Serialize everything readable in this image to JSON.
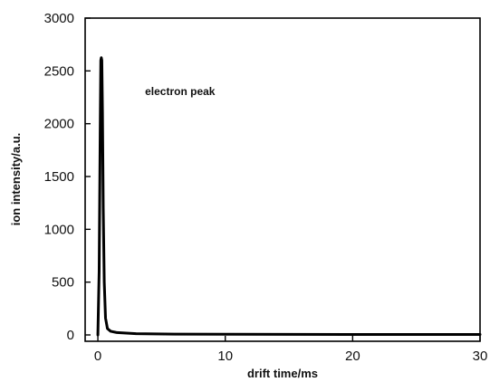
{
  "chart_data": {
    "type": "line",
    "title": "",
    "xlabel": "drift time/ms",
    "ylabel": "ion intensity/a.u.",
    "xlim": [
      -1,
      30
    ],
    "ylim": [
      -60,
      3000
    ],
    "xticks": [
      0,
      10,
      20,
      30
    ],
    "yticks": [
      0,
      500,
      1000,
      1500,
      2000,
      2500,
      3000
    ],
    "grid": false,
    "legend": "none",
    "annotations": [
      {
        "text": "electron peak",
        "x": 3.7,
        "y": 2270
      }
    ],
    "series": [
      {
        "color": "#000000",
        "x": [
          0,
          0.1,
          0.18,
          0.23,
          0.27,
          0.31,
          0.36,
          0.42,
          0.5,
          0.6,
          0.75,
          1.0,
          1.5,
          3,
          6,
          10,
          15,
          20,
          25,
          30
        ],
        "y": [
          0,
          600,
          1900,
          2600,
          2625,
          2600,
          2100,
          1200,
          500,
          160,
          60,
          35,
          22,
          12,
          8,
          6,
          5,
          4,
          4,
          4
        ]
      }
    ]
  }
}
